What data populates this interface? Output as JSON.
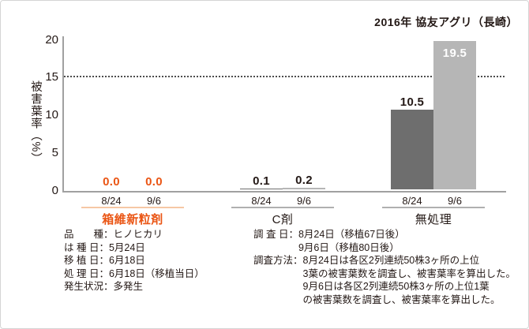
{
  "chart_data": {
    "type": "bar",
    "title": "2016年 協友アグリ（長崎）",
    "ylabel": "被害葉率（%）",
    "xlabel": "",
    "ylim": [
      0,
      20
    ],
    "ytick_labels": [
      "20",
      "15",
      "10",
      "5",
      "0"
    ],
    "reference_line": 15,
    "grid": false,
    "legend_position": "none",
    "categories": [
      "8/24",
      "9/6"
    ],
    "bar_colors": [
      "#6e6e6e",
      "#b6b6b6"
    ],
    "groups": [
      {
        "label": "箱維新粒剤",
        "label_color": "#ea5514",
        "label_bold": true,
        "underline_color": "#f6c7a5",
        "bars": [
          {
            "date": "8/24",
            "value": 0.0,
            "display": "0.0",
            "value_color": "#ea5514",
            "label_inside": false
          },
          {
            "date": "9/6",
            "value": 0.0,
            "display": "0.0",
            "value_color": "#ea5514",
            "label_inside": false
          }
        ]
      },
      {
        "label": "C剤",
        "label_color": "#231815",
        "label_bold": false,
        "underline_color": "#b0b0b0",
        "bars": [
          {
            "date": "8/24",
            "value": 0.1,
            "display": "0.1",
            "value_color": "#231815",
            "label_inside": false
          },
          {
            "date": "9/6",
            "value": 0.2,
            "display": "0.2",
            "value_color": "#231815",
            "label_inside": false
          }
        ]
      },
      {
        "label": "無処理",
        "label_color": "#231815",
        "label_bold": false,
        "underline_color": "#b0b0b0",
        "bars": [
          {
            "date": "8/24",
            "value": 10.5,
            "display": "10.5",
            "value_color": "#231815",
            "label_inside": false
          },
          {
            "date": "9/6",
            "value": 19.5,
            "display": "19.5",
            "value_color": "#ffffff",
            "label_inside": true
          }
        ]
      }
    ]
  },
  "footer": {
    "left": [
      {
        "label": "品　　種：",
        "value": "ヒノヒカリ"
      },
      {
        "label": "は 種 日：",
        "value": "5月24日"
      },
      {
        "label": "移 植 日：",
        "value": "6月18日"
      },
      {
        "label": "処 理 日：",
        "value": "6月18日（移植当日）"
      },
      {
        "label": "発生状況：",
        "value": "多発生"
      }
    ],
    "right": [
      {
        "label": "調 査 日：",
        "lines": [
          "8月24日（移植67日後）",
          "9月6日（移植80日後）"
        ]
      },
      {
        "label": "調査方法：",
        "lines": [
          "8月24日は各区2列連続50株3ヶ所の上位",
          "3葉の被害葉数を調査し、被害葉率を算出した。",
          "9月6日は各区2列連続50株3ヶ所の上位1葉",
          "の被害葉数を調査し、被害葉率を算出した。"
        ]
      }
    ]
  },
  "colors": {
    "accent_orange": "#ea5514",
    "accent_orange_light": "#f6c7a5",
    "bar_dark": "#6e6e6e",
    "bar_light": "#b6b6b6",
    "axis_gray": "#a1a1a1",
    "text": "#231815"
  }
}
